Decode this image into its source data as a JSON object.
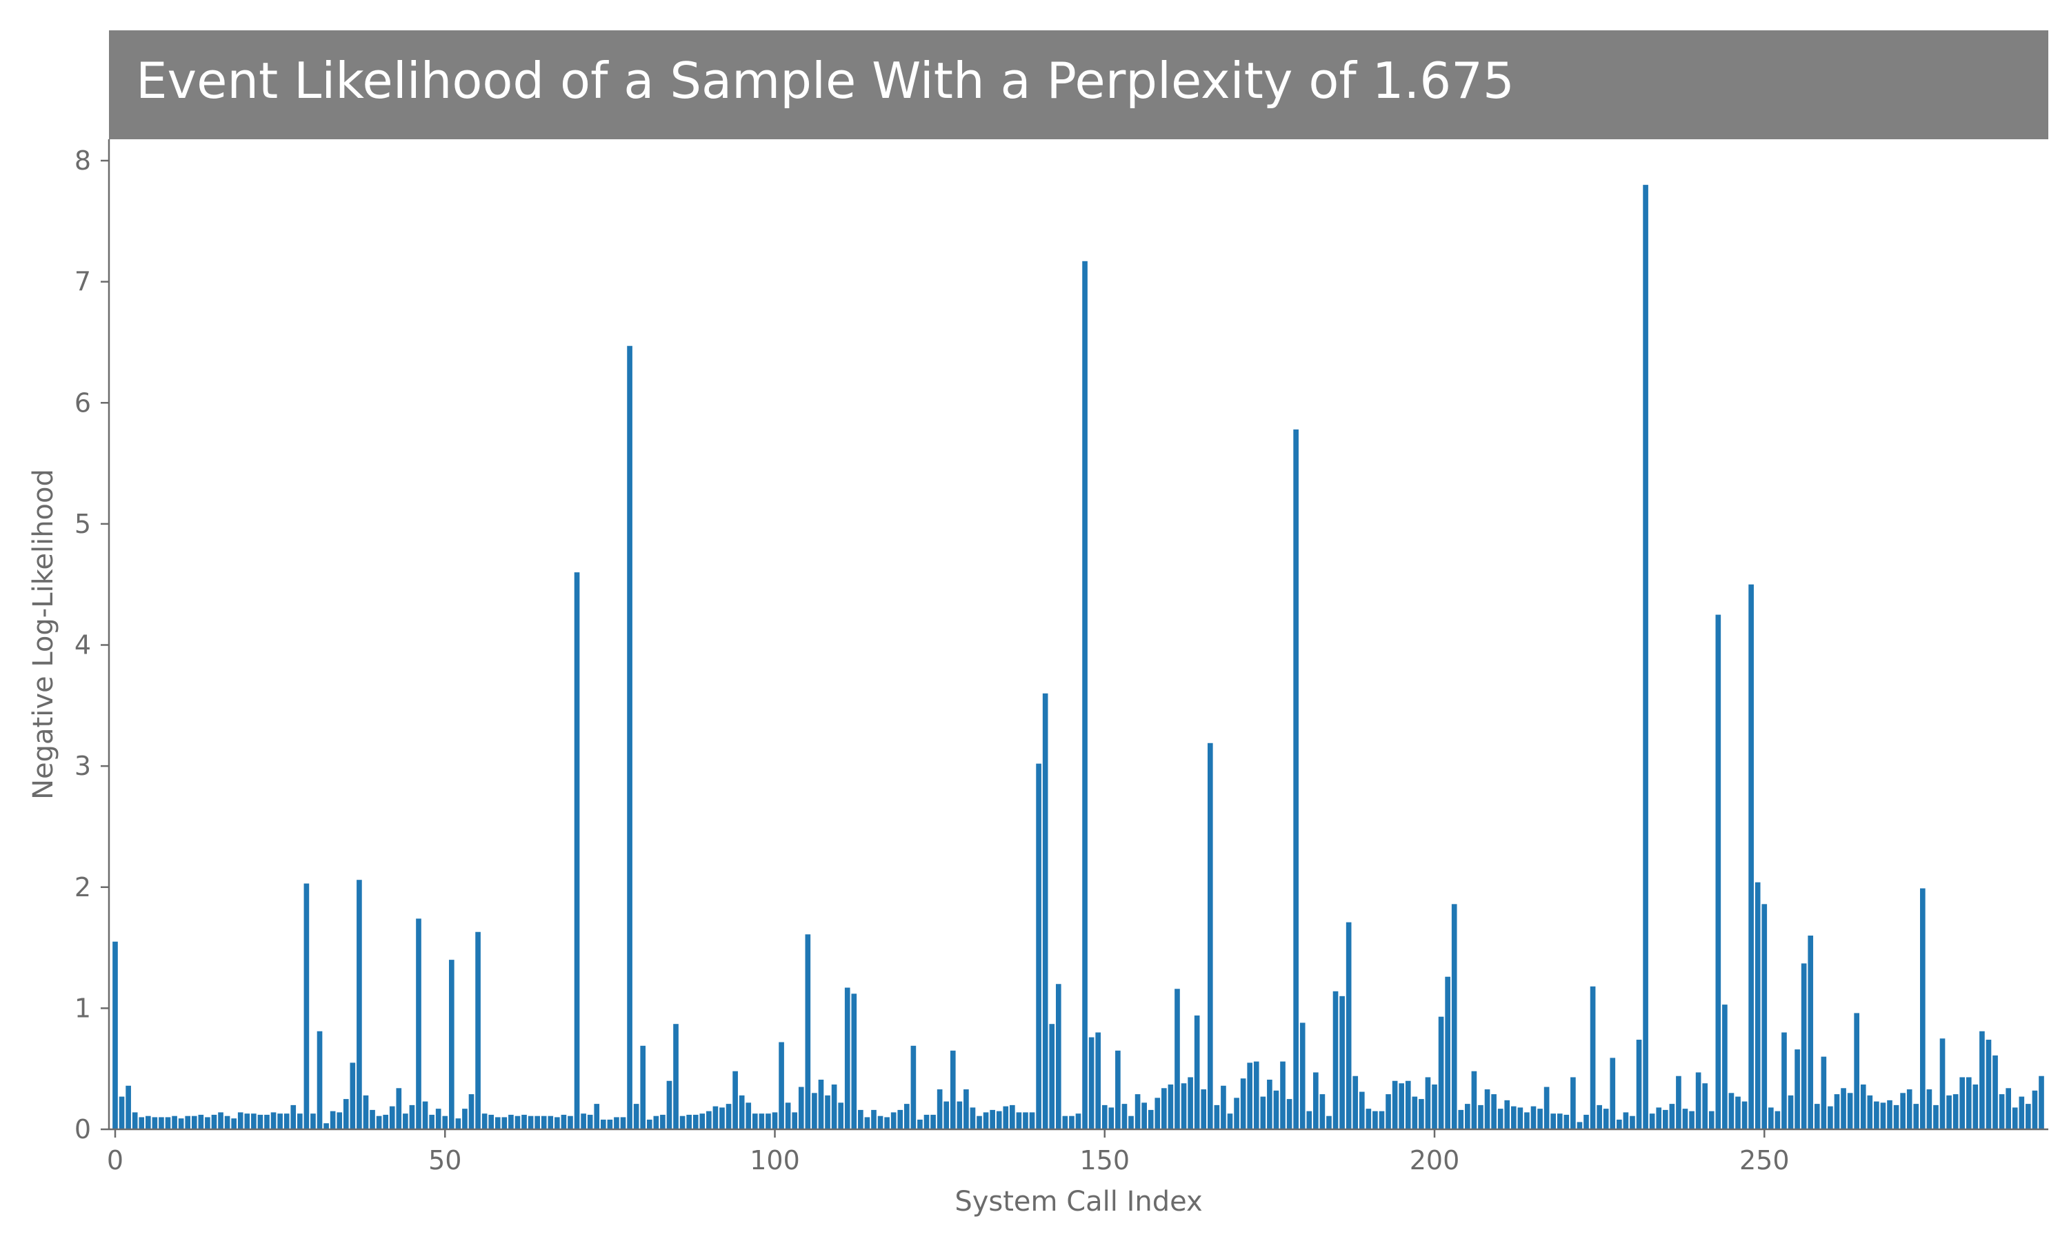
{
  "chart_data": {
    "type": "bar",
    "title": "Event Likelihood of a Sample With a Perplexity of 1.675",
    "xlabel": "System Call Index",
    "ylabel": "Negative Log-Likelihood",
    "xlim": [
      -0.5,
      292.5
    ],
    "ylim": [
      0,
      8.2
    ],
    "xticks": [
      0,
      50,
      100,
      150,
      200,
      250
    ],
    "yticks": [
      0,
      1,
      2,
      3,
      4,
      5,
      6,
      7,
      8
    ],
    "grid": false,
    "legend": "none",
    "colors": {
      "bar": "#1f77b4",
      "title_background": "#808080",
      "title_text": "#ffffff",
      "axis": "#6b6b6b"
    },
    "series": [
      {
        "values": [
          1.55,
          0.27,
          0.36,
          0.14,
          0.1,
          0.11,
          0.1,
          0.1,
          0.1,
          0.11,
          0.09,
          0.11,
          0.11,
          0.12,
          0.1,
          0.12,
          0.14,
          0.11,
          0.09,
          0.14,
          0.13,
          0.13,
          0.12,
          0.12,
          0.14,
          0.13,
          0.13,
          0.2,
          0.13,
          2.03,
          0.13,
          0.81,
          0.05,
          0.15,
          0.14,
          0.25,
          0.55,
          2.06,
          0.28,
          0.16,
          0.11,
          0.12,
          0.19,
          0.34,
          0.13,
          0.2,
          1.74,
          0.23,
          0.12,
          0.17,
          0.11,
          1.4,
          0.09,
          0.17,
          0.29,
          1.63,
          0.13,
          0.12,
          0.1,
          0.1,
          0.12,
          0.11,
          0.12,
          0.11,
          0.11,
          0.11,
          0.11,
          0.1,
          0.12,
          0.11,
          4.6,
          0.13,
          0.12,
          0.21,
          0.08,
          0.08,
          0.1,
          0.1,
          6.47,
          0.21,
          0.69,
          0.08,
          0.11,
          0.12,
          0.4,
          0.87,
          0.11,
          0.12,
          0.12,
          0.13,
          0.15,
          0.19,
          0.18,
          0.21,
          0.48,
          0.28,
          0.22,
          0.13,
          0.13,
          0.13,
          0.14,
          0.72,
          0.22,
          0.14,
          0.35,
          1.61,
          0.3,
          0.41,
          0.28,
          0.37,
          0.22,
          1.17,
          1.12,
          0.16,
          0.1,
          0.16,
          0.11,
          0.1,
          0.14,
          0.16,
          0.21,
          0.69,
          0.08,
          0.12,
          0.12,
          0.33,
          0.23,
          0.65,
          0.23,
          0.33,
          0.18,
          0.11,
          0.14,
          0.16,
          0.15,
          0.19,
          0.2,
          0.14,
          0.14,
          0.14,
          3.02,
          3.6,
          0.87,
          1.2,
          0.11,
          0.11,
          0.13,
          7.17,
          0.76,
          0.8,
          0.2,
          0.18,
          0.65,
          0.21,
          0.11,
          0.29,
          0.22,
          0.16,
          0.26,
          0.34,
          0.37,
          1.16,
          0.38,
          0.43,
          0.94,
          0.33,
          3.19,
          0.2,
          0.36,
          0.13,
          0.26,
          0.42,
          0.55,
          0.56,
          0.27,
          0.41,
          0.32,
          0.56,
          0.25,
          5.78,
          0.88,
          0.15,
          0.47,
          0.29,
          0.11,
          1.14,
          1.1,
          1.71,
          0.44,
          0.31,
          0.17,
          0.15,
          0.15,
          0.29,
          0.4,
          0.38,
          0.4,
          0.27,
          0.25,
          0.43,
          0.37,
          0.93,
          1.26,
          1.86,
          0.16,
          0.21,
          0.48,
          0.2,
          0.33,
          0.29,
          0.17,
          0.24,
          0.19,
          0.18,
          0.14,
          0.19,
          0.17,
          0.35,
          0.13,
          0.13,
          0.12,
          0.43,
          0.06,
          0.12,
          1.18,
          0.2,
          0.17,
          0.59,
          0.08,
          0.14,
          0.11,
          0.74,
          7.8,
          0.13,
          0.18,
          0.16,
          0.21,
          0.44,
          0.17,
          0.15,
          0.47,
          0.38,
          0.15,
          4.25,
          1.03,
          0.3,
          0.27,
          0.23,
          4.5,
          2.04,
          1.86,
          0.18,
          0.15,
          0.8,
          0.28,
          0.66,
          1.37,
          1.6,
          0.21,
          0.6,
          0.19,
          0.29,
          0.34,
          0.3,
          0.96,
          0.37,
          0.28,
          0.23,
          0.22,
          0.24,
          0.2,
          0.3,
          0.33,
          0.21,
          1.99,
          0.33,
          0.2,
          0.75,
          0.28,
          0.29,
          0.43,
          0.43,
          0.37,
          0.81,
          0.74,
          0.61,
          0.29,
          0.34,
          0.18,
          0.27,
          0.21,
          0.32,
          0.44
        ]
      }
    ]
  }
}
